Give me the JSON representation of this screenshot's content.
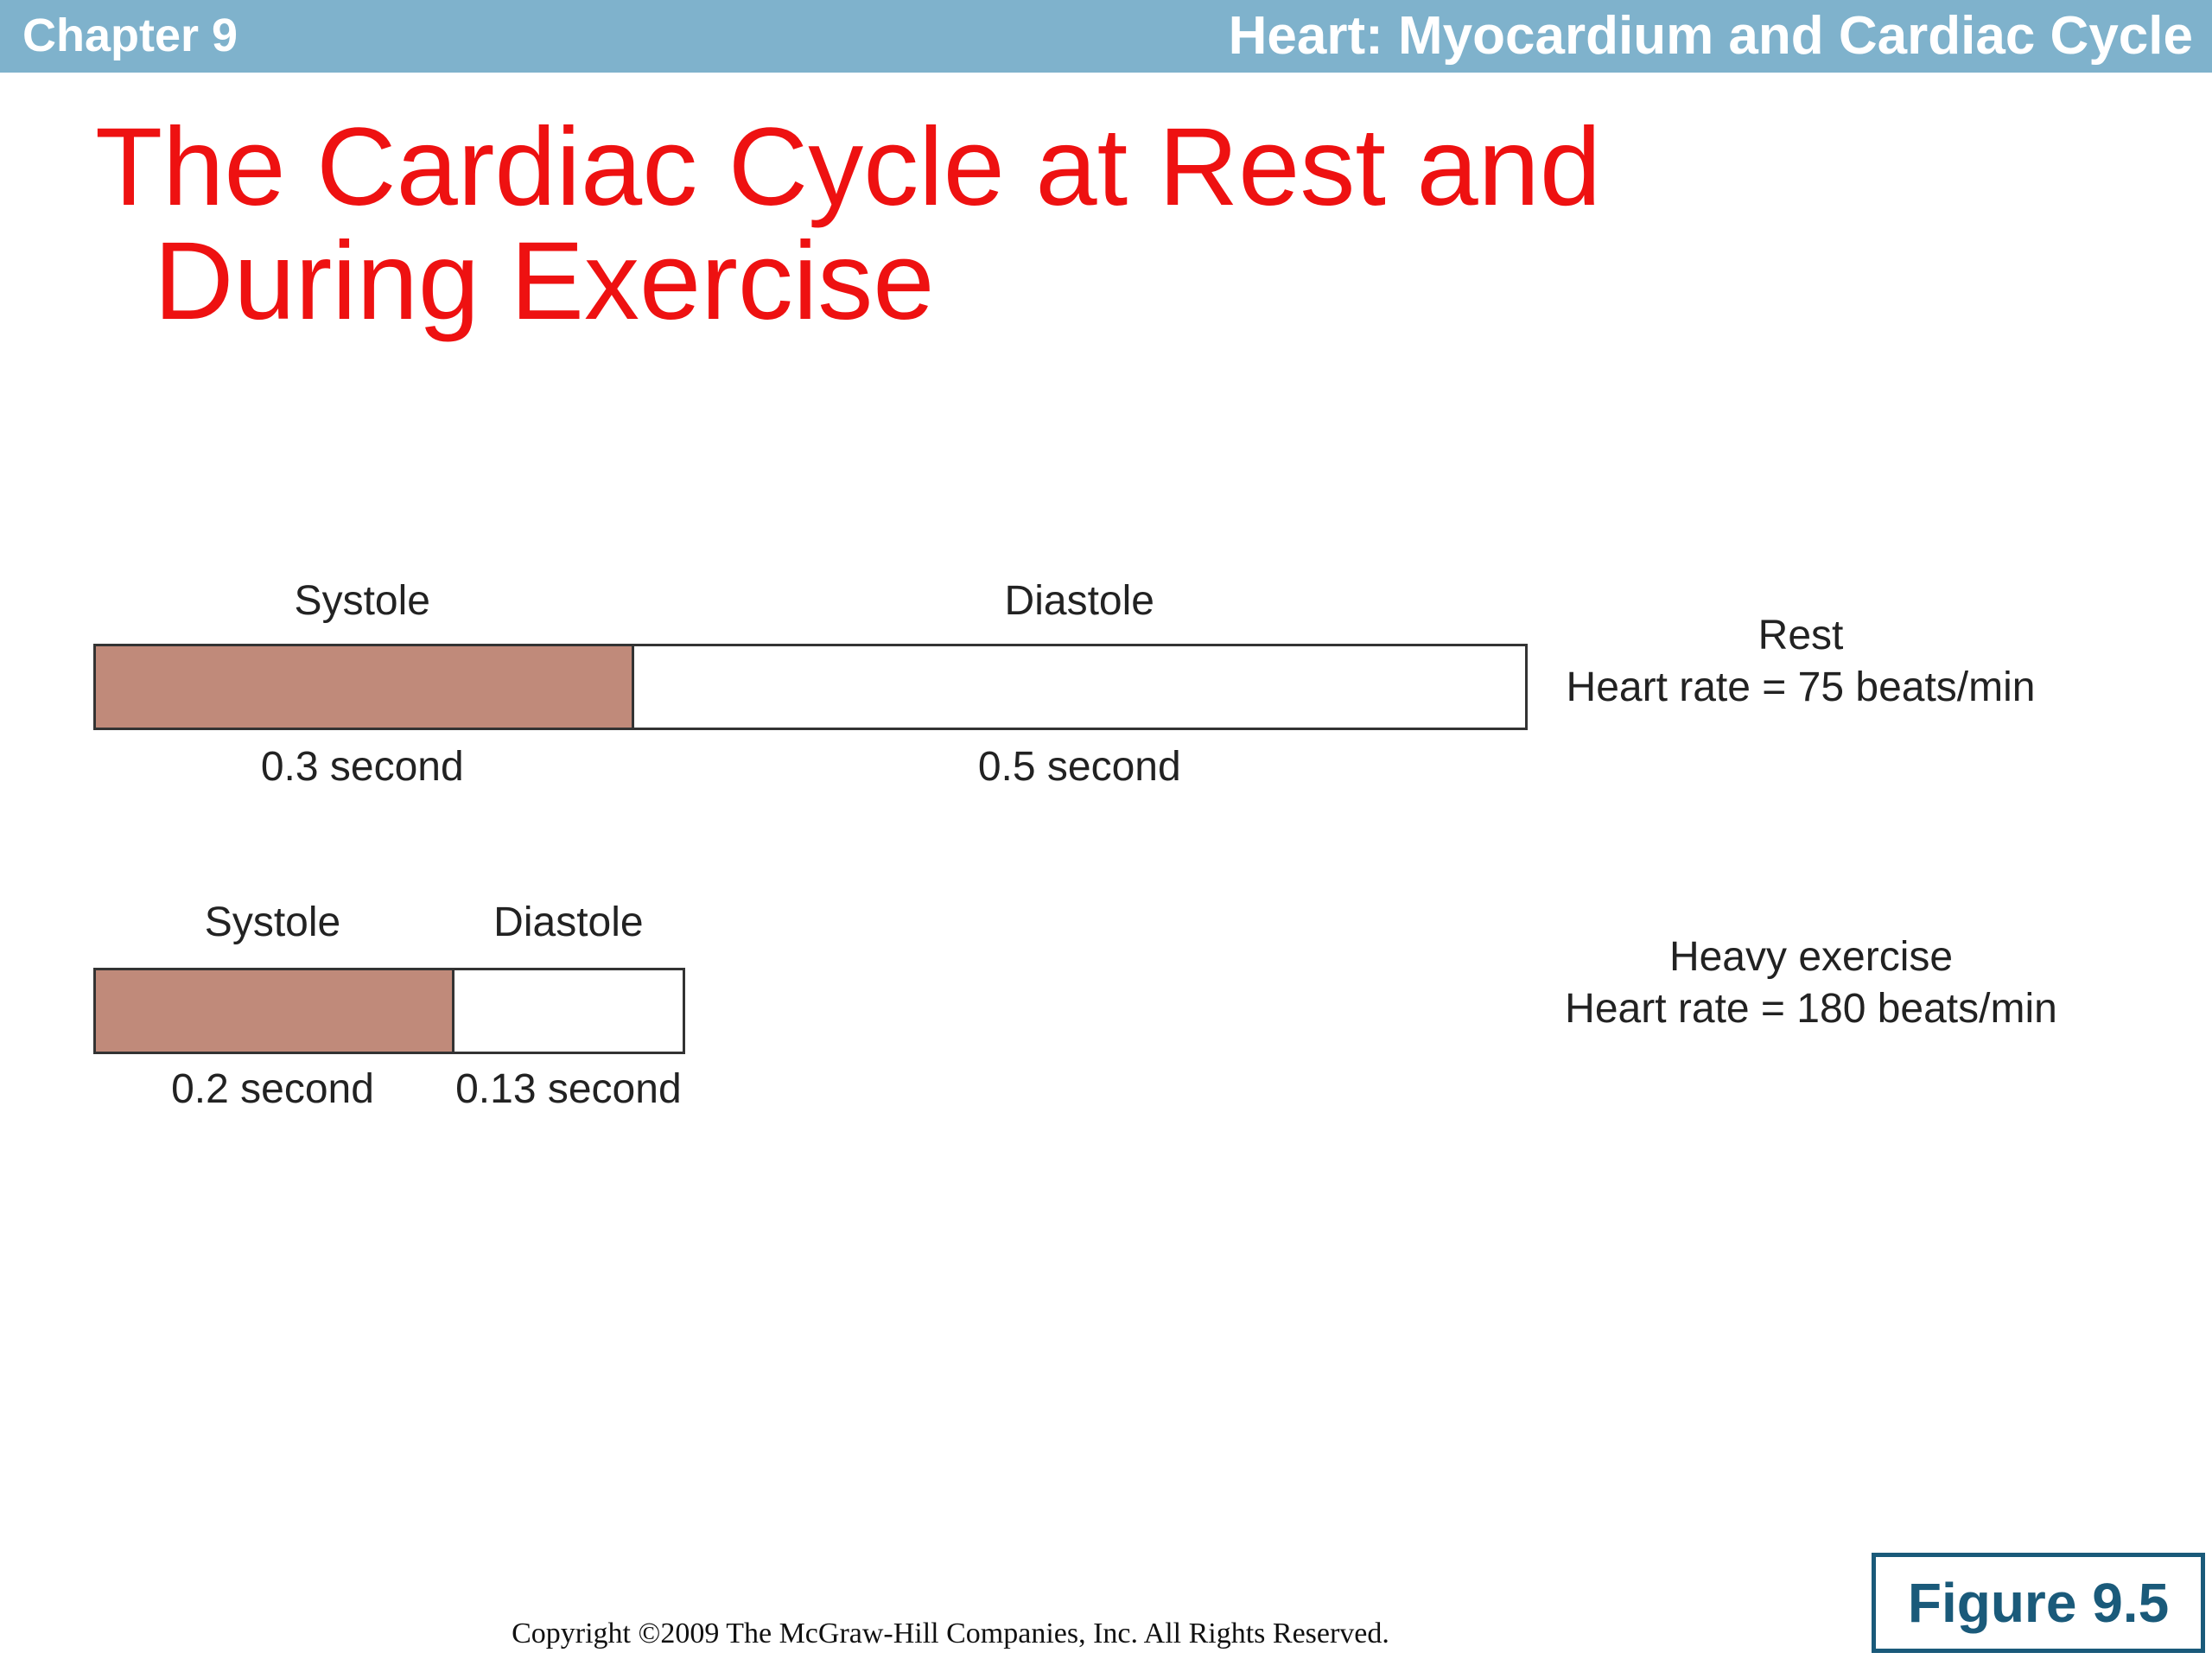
{
  "header": {
    "chapter": "Chapter 9",
    "title": "Heart: Myocardium and Cardiac Cycle",
    "bar_color": "#7fb2cc"
  },
  "slide": {
    "title_line1": "The Cardiac Cycle at Rest and",
    "title_line2": "During Exercise",
    "title_color": "#ee1111"
  },
  "diagram": {
    "systole_color": "#c08a7a",
    "rows": [
      {
        "systole_label": "Systole",
        "diastole_label": "Diastole",
        "systole_value": "0.3 second",
        "diastole_value": "0.5 second",
        "systole_seconds": 0.3,
        "diastole_seconds": 0.5,
        "state": "Rest",
        "heart_rate": "Heart rate = 75 beats/min"
      },
      {
        "systole_label": "Systole",
        "diastole_label": "Diastole",
        "systole_value": "0.2 second",
        "diastole_value": "0.13 second",
        "systole_seconds": 0.2,
        "diastole_seconds": 0.13,
        "state": "Heavy exercise",
        "heart_rate": "Heart rate = 180 beats/min"
      }
    ]
  },
  "footer": {
    "copyright": "Copyright ©2009 The McGraw-Hill Companies, Inc. All Rights Reserved.",
    "figure_label": "Figure 9.5"
  }
}
